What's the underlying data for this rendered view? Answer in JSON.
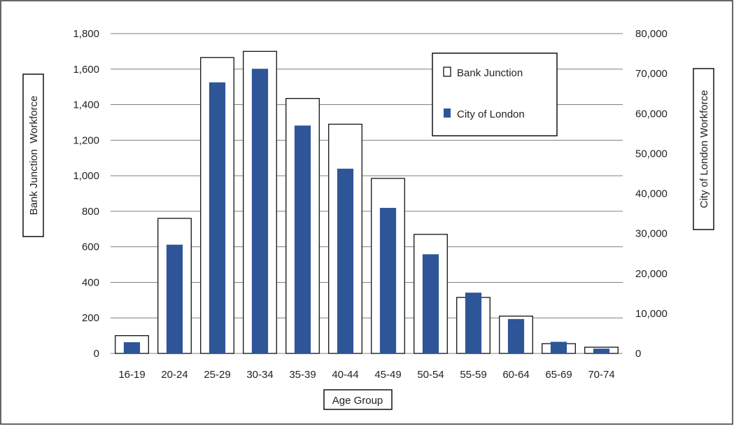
{
  "chart_data": {
    "type": "bar",
    "categories": [
      "16-19",
      "20-24",
      "25-29",
      "30-34",
      "35-39",
      "40-44",
      "45-49",
      "50-54",
      "55-59",
      "60-64",
      "65-69",
      "70-74"
    ],
    "series": [
      {
        "name": "Bank Junction",
        "axis": "left",
        "style": "hollow",
        "values": [
          100,
          760,
          1665,
          1700,
          1435,
          1290,
          985,
          670,
          315,
          210,
          55,
          35
        ]
      },
      {
        "name": "City of London",
        "axis": "right",
        "style": "filled",
        "values": [
          2800,
          27200,
          67800,
          71200,
          57000,
          46200,
          36400,
          24800,
          15200,
          8600,
          2900,
          1200
        ]
      }
    ],
    "xlabel": "Age Group",
    "ylabel_left": "Bank Junction  Workforce",
    "ylabel_right": "City of London Workforce",
    "ylim_left": [
      0,
      1800
    ],
    "ylim_right": [
      0,
      80000
    ],
    "yticks_left": [
      "0",
      "200",
      "400",
      "600",
      "800",
      "1,000",
      "1,200",
      "1,400",
      "1,600",
      "1,800"
    ],
    "yticks_right": [
      "0",
      "10,000",
      "20,000",
      "30,000",
      "40,000",
      "50,000",
      "60,000",
      "70,000",
      "80,000"
    ],
    "grid": true,
    "legend_position": "top-right",
    "colors": {
      "filled": "#2e5597",
      "hollow_stroke": "#111111",
      "grid": "#7f7f7f"
    }
  }
}
